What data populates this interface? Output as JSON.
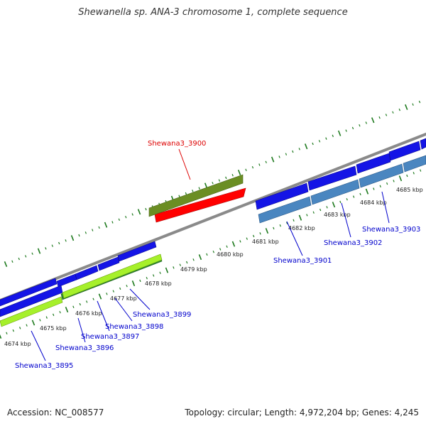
{
  "title": "Shewanella sp. ANA-3 chromosome 1, complete sequence",
  "footer": {
    "accession": "Accession: NC_008577",
    "summary": "Topology: circular; Length: 4,972,204 bp; Genes: 4,245"
  },
  "colors": {
    "backbone": "#8a8a8a",
    "gene_forward": "#1414e6",
    "gene_reverse": "#4a86c0",
    "gene_green_dark": "#2e8a2e",
    "gene_green_light": "#a6f02a",
    "gene_olive": "#6b8e23",
    "gene_red": "#ff0000",
    "tick": "#1e7a1e",
    "label_blue": "#0000cc",
    "label_red": "#dd0000"
  },
  "ticks": [
    "4674 kbp",
    "4675 kbp",
    "4676 kbp",
    "4677 kbp",
    "4678 kbp",
    "4679 kbp",
    "4680 kbp",
    "4681 kbp",
    "4682 kbp",
    "4683 kbp",
    "4684 kbp",
    "4685 kbp"
  ],
  "gene_labels": [
    {
      "name": "Shewana3_3895",
      "color": "blue"
    },
    {
      "name": "Shewana3_3896",
      "color": "blue"
    },
    {
      "name": "Shewana3_3897",
      "color": "blue"
    },
    {
      "name": "Shewana3_3898",
      "color": "blue"
    },
    {
      "name": "Shewana3_3899",
      "color": "blue"
    },
    {
      "name": "Shewana3_3900",
      "color": "red"
    },
    {
      "name": "Shewana3_3901",
      "color": "blue"
    },
    {
      "name": "Shewana3_3902",
      "color": "blue"
    },
    {
      "name": "Shewana3_3903",
      "color": "blue"
    }
  ]
}
